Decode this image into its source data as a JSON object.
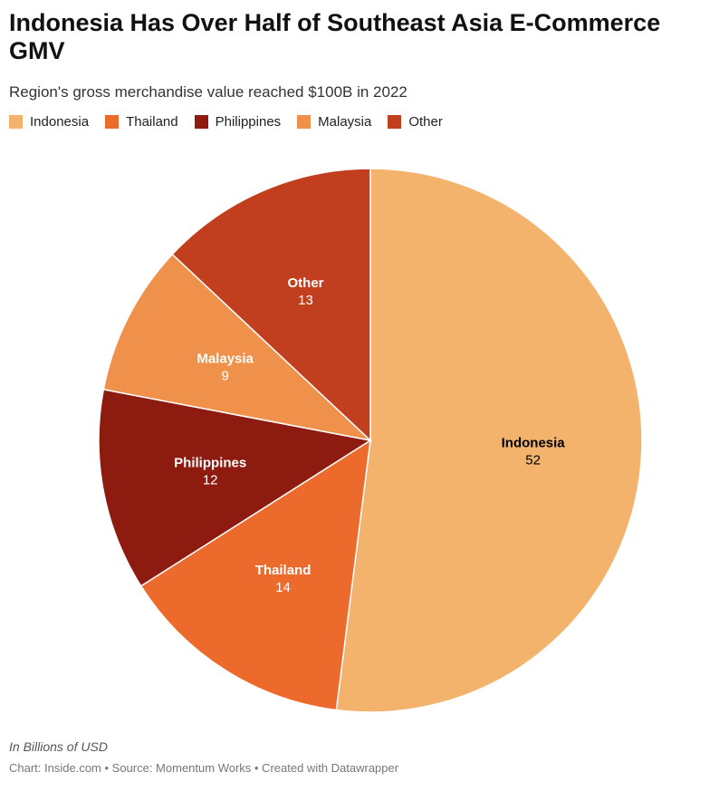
{
  "title": "Indonesia Has Over Half of Southeast Asia E-Commerce GMV",
  "subtitle": "Region's gross merchandise value reached $100B in 2022",
  "notes": "In Billions of USD",
  "footer": "Chart: Inside.com • Source: Momentum Works • Created with Datawrapper",
  "chart_data": {
    "type": "pie",
    "title": "Indonesia Has Over Half of Southeast Asia E-Commerce GMV",
    "subtitle": "Region's gross merchandise value reached $100B in 2022",
    "unit": "In Billions of USD",
    "legend_position": "top-left",
    "categories": [
      "Indonesia",
      "Thailand",
      "Philippines",
      "Malaysia",
      "Other"
    ],
    "values": [
      52,
      14,
      12,
      9,
      13
    ],
    "colors": [
      "#f4b36d",
      "#ec6a2c",
      "#8e1b10",
      "#ef914b",
      "#c13f1e"
    ],
    "label_colors": [
      "#000000",
      "#ffffff",
      "#ffffff",
      "#ffffff",
      "#ffffff"
    ]
  }
}
